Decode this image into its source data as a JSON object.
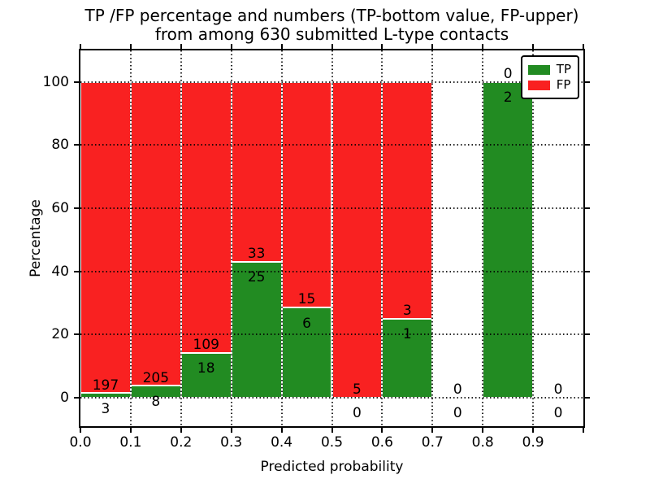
{
  "figure": {
    "title_line1": "TP /FP percentage and numbers (TP-bottom value, FP-upper)",
    "title_line2": "from among 630 submitted L-type contacts"
  },
  "axes": {
    "xlabel": "Predicted probability",
    "ylabel": "Percentage",
    "xlim": [
      0.0,
      1.0
    ],
    "ylim": [
      -9,
      110
    ],
    "yticks": [
      0,
      20,
      40,
      60,
      80,
      100
    ],
    "xtick_labels": [
      "0.0",
      "0.1",
      "0.2",
      "0.3",
      "0.4",
      "0.5",
      "0.6",
      "0.7",
      "0.8",
      "0.9",
      ""
    ],
    "grid": true
  },
  "legend": {
    "position": "upper right",
    "items": [
      {
        "label": "TP",
        "color": "#228b22"
      },
      {
        "label": "FP",
        "color": "#f92121"
      }
    ]
  },
  "chart_data": {
    "type": "bar",
    "stacked": true,
    "normalized": "each non-empty bin totals 100%",
    "title": "TP /FP percentage and numbers (TP-bottom value, FP-upper) from among 630 submitted L-type contacts",
    "xlabel": "Predicted probability",
    "ylabel": "Percentage",
    "total_submitted": 630,
    "bin_edges": [
      0.0,
      0.1,
      0.2,
      0.3,
      0.4,
      0.5,
      0.6,
      0.7,
      0.8,
      0.9,
      1.0
    ],
    "categories": [
      "0.0-0.1",
      "0.1-0.2",
      "0.2-0.3",
      "0.3-0.4",
      "0.4-0.5",
      "0.5-0.6",
      "0.6-0.7",
      "0.7-0.8",
      "0.8-0.9",
      "0.9-1.0"
    ],
    "series": [
      {
        "name": "TP",
        "color": "#228b22",
        "counts": [
          3,
          8,
          18,
          25,
          6,
          0,
          1,
          0,
          2,
          0
        ],
        "pct": [
          1.5,
          3.8,
          14.2,
          43.1,
          28.6,
          0.0,
          25.0,
          null,
          100.0,
          null
        ]
      },
      {
        "name": "FP",
        "color": "#f92121",
        "counts": [
          197,
          205,
          109,
          33,
          15,
          5,
          3,
          0,
          0,
          0
        ],
        "pct": [
          98.5,
          96.2,
          85.8,
          56.9,
          71.4,
          100.0,
          75.0,
          null,
          0.0,
          null
        ]
      }
    ]
  },
  "colors": {
    "tp": "#228b22",
    "fp": "#f92121",
    "bar_edge": "#ffffff",
    "grid": "#000000",
    "text": "#000000",
    "background": "#ffffff"
  }
}
